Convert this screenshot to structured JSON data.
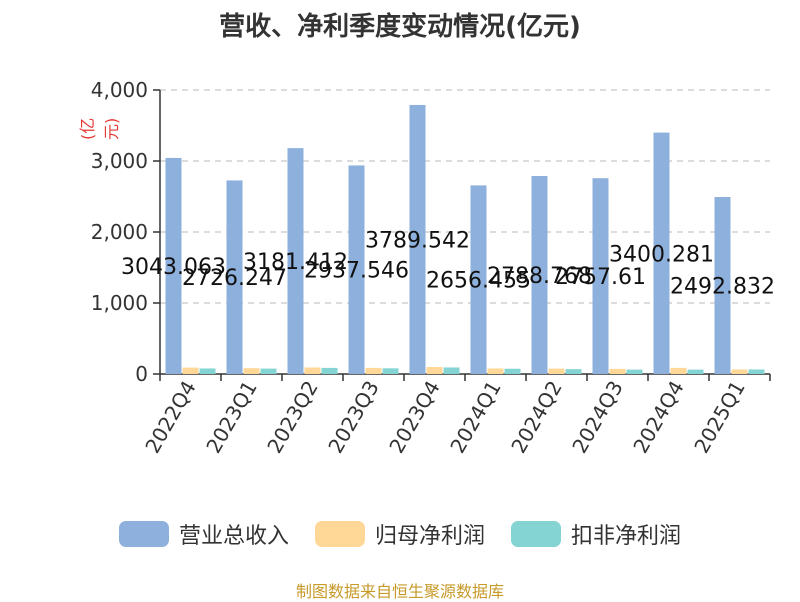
{
  "chart_data": {
    "type": "bar",
    "title": "营收、净利季度变动情况(亿元)",
    "ylabel": "(亿元)",
    "ylim": [
      0,
      4000
    ],
    "yticks": [
      "0",
      "1,000",
      "2,000",
      "3,000",
      "4,000"
    ],
    "categories": [
      "2022Q4",
      "2023Q1",
      "2023Q2",
      "2023Q3",
      "2023Q4",
      "2024Q1",
      "2024Q2",
      "2024Q3",
      "2024Q4",
      "2025Q1"
    ],
    "series": [
      {
        "name": "营业总收入",
        "color": "#8eb0dc",
        "values": [
          3043.063,
          2726.247,
          3181.412,
          2937.546,
          3789.542,
          2656.455,
          2788.768,
          2757.61,
          3400.281,
          2492.832
        ],
        "labels": [
          "3043.063",
          "2726.247",
          "3181.412",
          "2937.546",
          "3789.542",
          "2656.455",
          "2788.768",
          "2757.61",
          "3400.281",
          "2492.832"
        ]
      },
      {
        "name": "归母净利润",
        "color": "#ffd796",
        "values": [
          90,
          82,
          92,
          86,
          98,
          78,
          76,
          72,
          86,
          64
        ]
      },
      {
        "name": "扣非净利润",
        "color": "#84d4d4",
        "values": [
          78,
          76,
          86,
          80,
          92,
          74,
          68,
          62,
          62,
          64
        ]
      }
    ],
    "grid": true,
    "legend_position": "bottom"
  },
  "source": "制图数据来自恒生聚源数据库"
}
